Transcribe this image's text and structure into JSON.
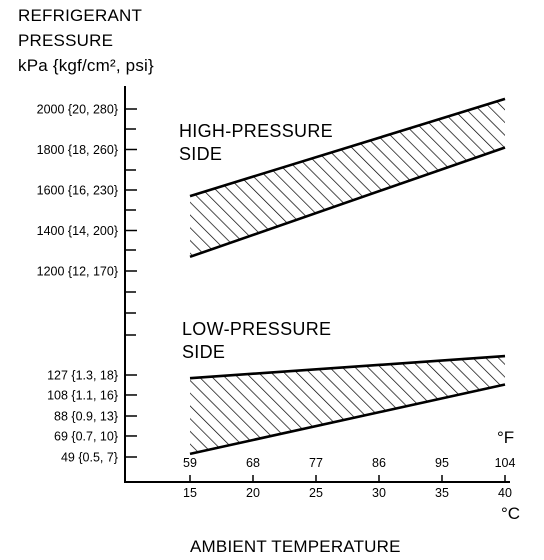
{
  "chart_data": {
    "type": "area",
    "title": [
      "REFRIGERANT",
      "PRESSURE",
      "kPa {kgf/cm², psi}"
    ],
    "xlabel": "AMBIENT TEMPERATURE",
    "x_units": {
      "upper": "°F",
      "lower": "°C"
    },
    "x_ticks_f": [
      "59",
      "68",
      "77",
      "86",
      "95",
      "104"
    ],
    "x_ticks_c": [
      "15",
      "20",
      "25",
      "30",
      "35",
      "40"
    ],
    "xlim_c": [
      15,
      40
    ],
    "y_ticks_high": [
      {
        "label": "2000 {20, 280}",
        "value": 2000
      },
      {
        "label": "1800 {18, 260}",
        "value": 1800
      },
      {
        "label": "1600 {16, 230}",
        "value": 1600
      },
      {
        "label": "1400 {14, 200}",
        "value": 1400
      },
      {
        "label": "1200 {12, 170}",
        "value": 1200
      }
    ],
    "y_ticks_low": [
      {
        "label": "127 {1.3, 18}",
        "value": 127
      },
      {
        "label": "108 {1.1, 16}",
        "value": 108
      },
      {
        "label": "88 {0.9, 13}",
        "value": 88
      },
      {
        "label": "69 {0.7, 10}",
        "value": 69
      },
      {
        "label": "49 {0.5, 7}",
        "value": 49
      }
    ],
    "series": [
      {
        "name": "HIGH-PRESSURE SIDE",
        "label_lines": [
          "HIGH-PRESSURE",
          "SIDE"
        ],
        "x_c": [
          15,
          40
        ],
        "upper_kpa": [
          1570,
          2050
        ],
        "lower_kpa": [
          1270,
          1810
        ]
      },
      {
        "name": "LOW-PRESSURE SIDE",
        "label_lines": [
          "LOW-PRESSURE",
          "SIDE"
        ],
        "x_c": [
          15,
          40
        ],
        "upper_kpa": [
          124,
          145
        ],
        "lower_kpa": [
          52,
          118
        ]
      }
    ],
    "hatch": "diagonal",
    "grid": false
  }
}
